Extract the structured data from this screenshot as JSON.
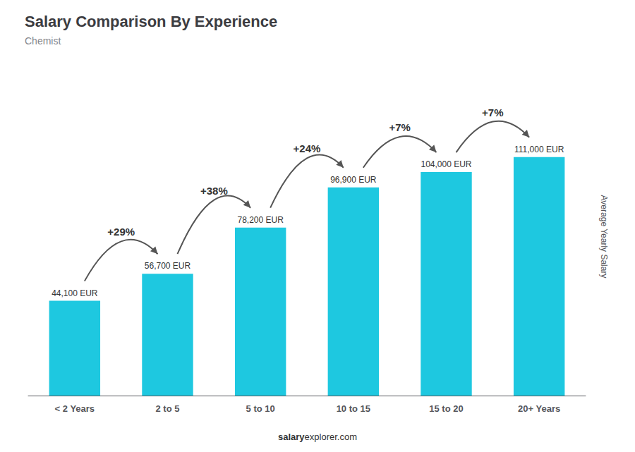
{
  "chart_data": {
    "type": "bar",
    "title": "Salary Comparison By Experience",
    "subtitle": "Chemist",
    "categories": [
      "< 2 Years",
      "2 to 5",
      "5 to 10",
      "10 to 15",
      "15 to 20",
      "20+ Years"
    ],
    "values": [
      44100,
      56700,
      78200,
      96900,
      104000,
      111000
    ],
    "value_labels": [
      "44,100 EUR",
      "56,700 EUR",
      "78,200 EUR",
      "96,900 EUR",
      "104,000 EUR",
      "111,000 EUR"
    ],
    "data_labels": true,
    "color": "#1ec8e0",
    "ylabel": "Average Yearly Salary",
    "ylim": [
      0,
      148000
    ],
    "grid": false,
    "tick_labels": "x",
    "annotations": [
      {
        "text": "+29%",
        "from": "< 2 Years",
        "to": "2 to 5"
      },
      {
        "text": "+38%",
        "from": "2 to 5",
        "to": "5 to 10"
      },
      {
        "text": "+24%",
        "from": "5 to 10",
        "to": "10 to 15"
      },
      {
        "text": "+7%",
        "from": "10 to 15",
        "to": "15 to 20"
      },
      {
        "text": "+7%",
        "from": "15 to 20",
        "to": "20+ Years"
      }
    ],
    "footer": [
      "salary",
      "explorer.com"
    ]
  }
}
